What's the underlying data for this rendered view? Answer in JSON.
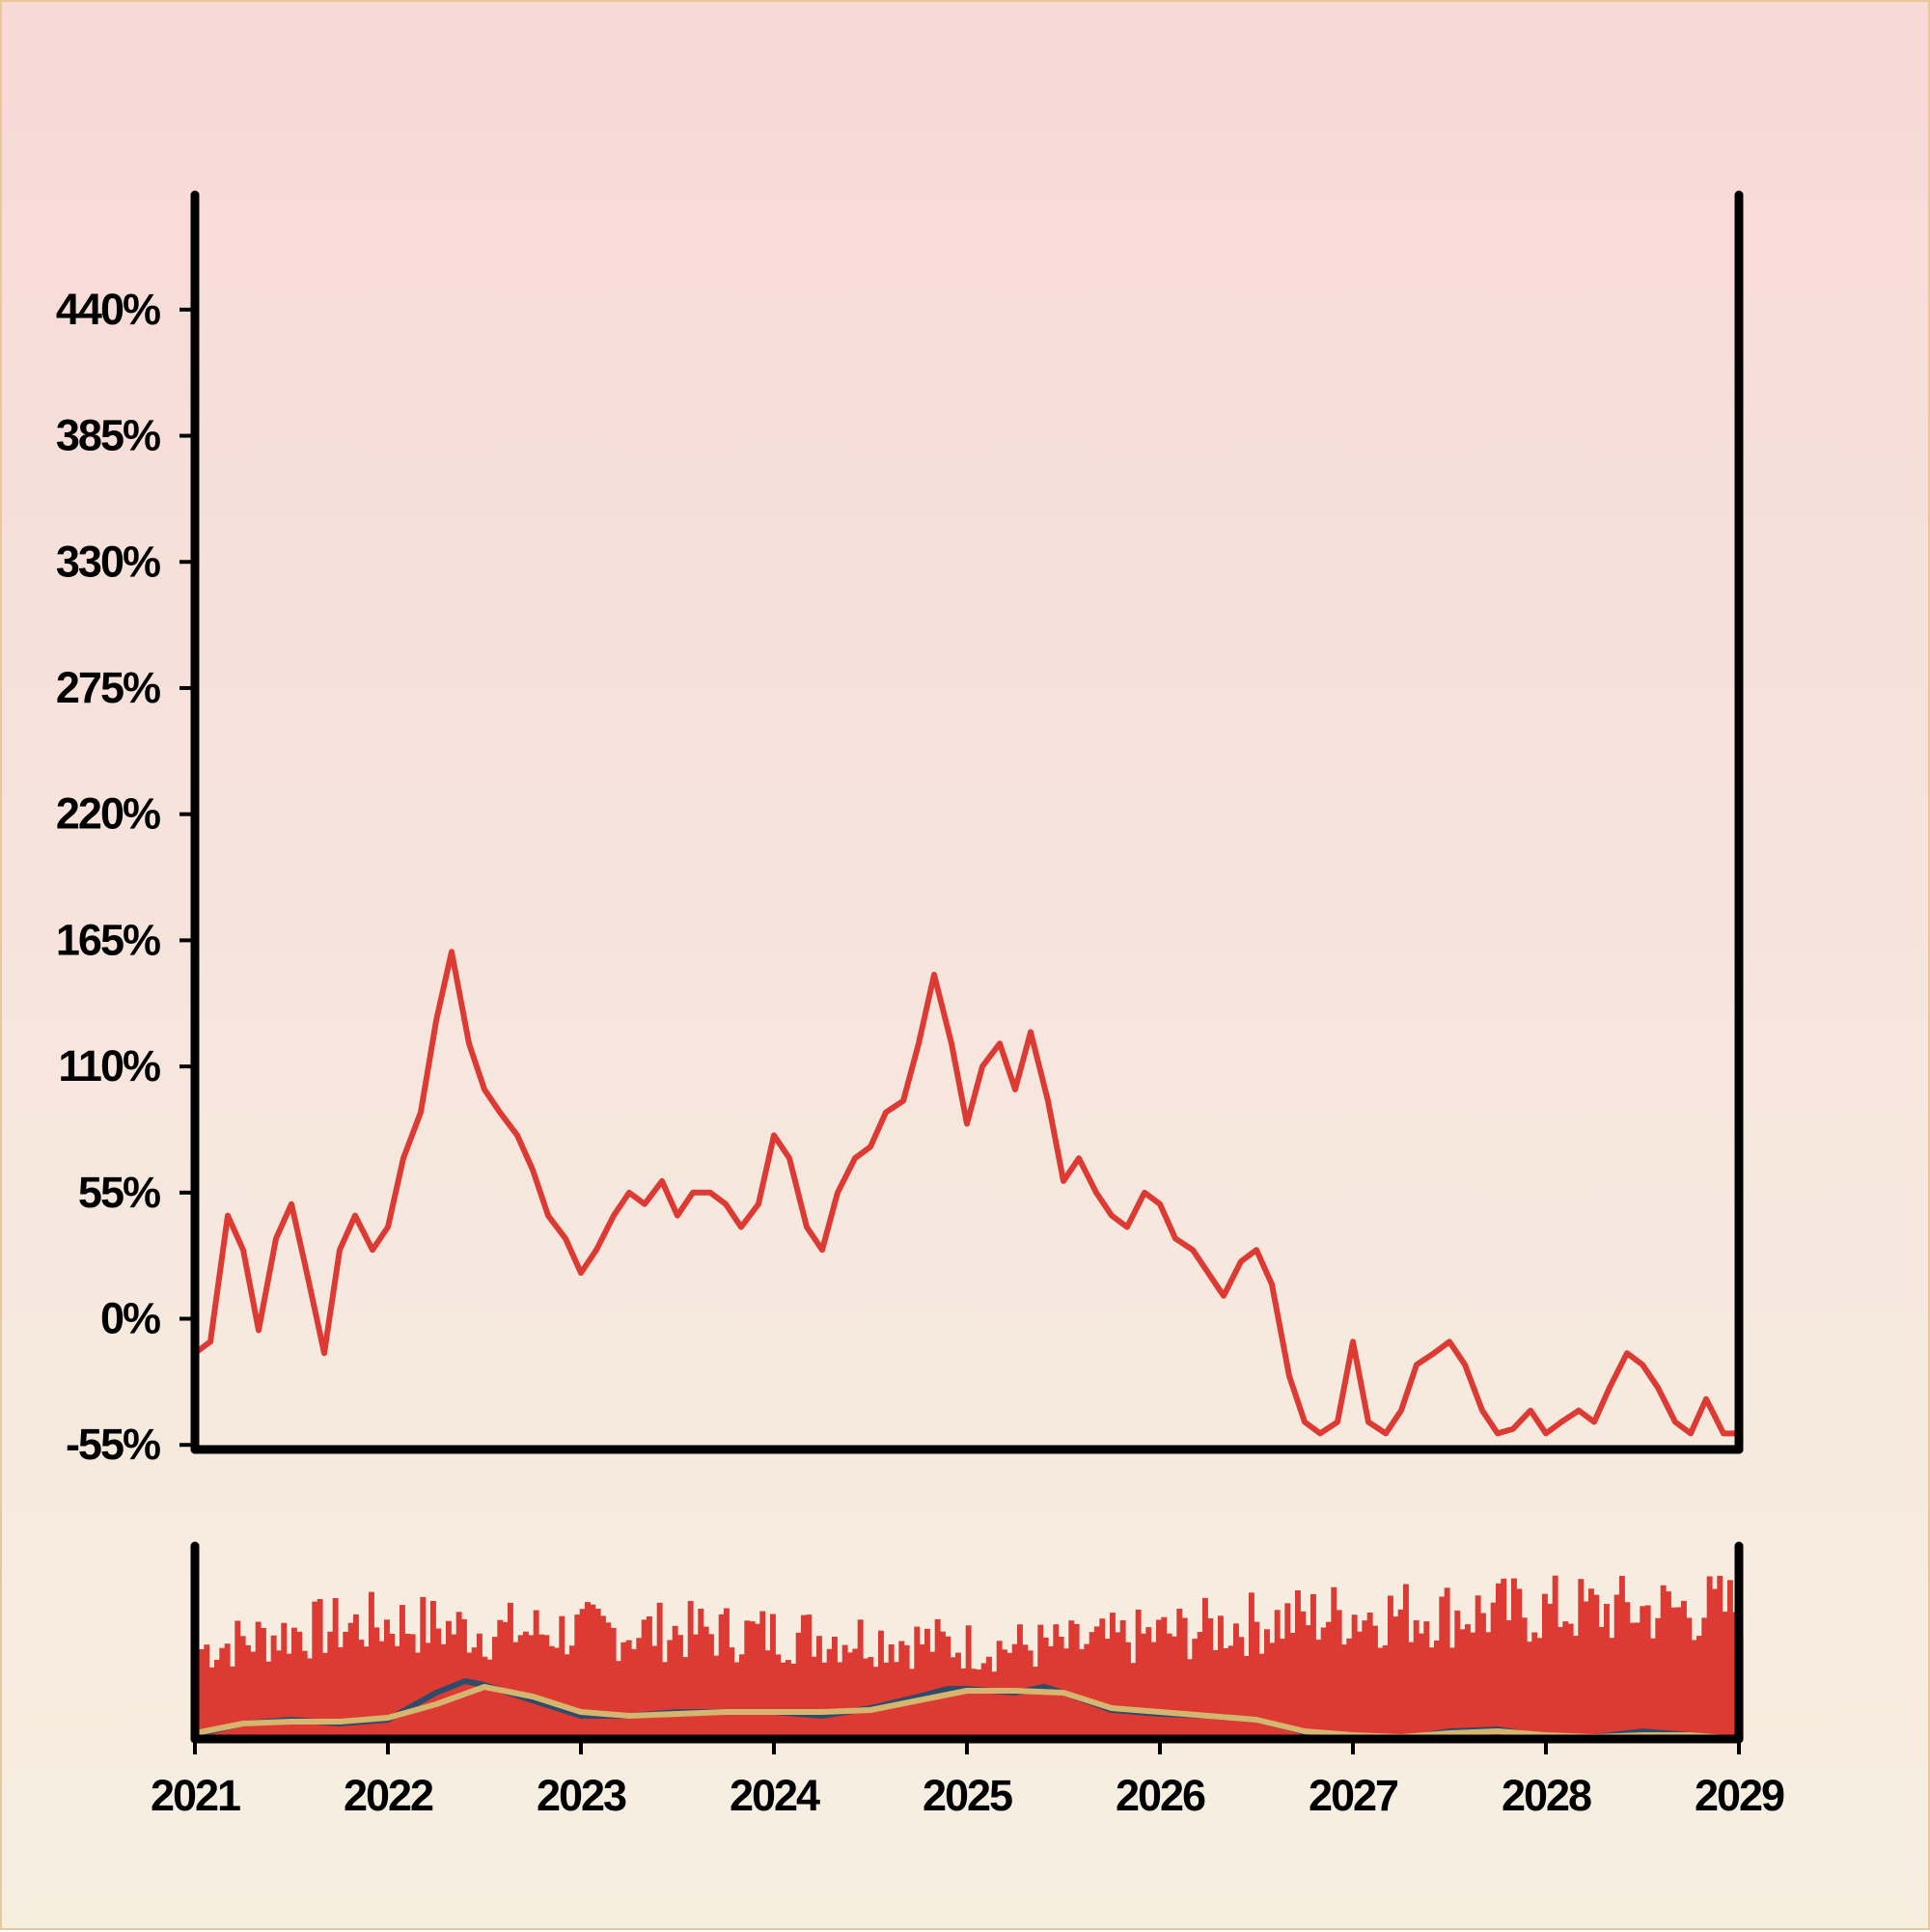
{
  "colors": {
    "price_line": "#dd3a33",
    "volume_bars": "#dd3a33",
    "ma_fast": "#2f4b6a",
    "ma_slow": "#d6b56e",
    "axis": "#000000",
    "background_top": "#f7d9d6",
    "background_bottom": "#f6efe0",
    "frame": "#e8c89a"
  },
  "chart_data": [
    {
      "type": "line",
      "title": "",
      "xlabel": "",
      "ylabel": "",
      "grid": false,
      "x_domain": [
        2021.0,
        2029.0
      ],
      "ylim": [
        -57,
        490
      ],
      "y_ticks": [
        -55,
        0,
        55,
        110,
        165,
        220,
        275,
        330,
        385,
        440
      ],
      "y_tick_labels": [
        "-55%",
        "0%",
        "55%",
        "110%",
        "165%",
        "220%",
        "275%",
        "330%",
        "385%",
        "440%"
      ],
      "series": [
        {
          "x": [
            2021.0,
            2021.08,
            2021.17,
            2021.25,
            2021.33,
            2021.42,
            2021.5,
            2021.58,
            2021.67,
            2021.75,
            2021.83,
            2021.92,
            2022.0,
            2022.08,
            2022.17,
            2022.25,
            2022.33,
            2022.42,
            2022.5,
            2022.58,
            2022.67,
            2022.75,
            2022.83,
            2022.92,
            2023.0,
            2023.08,
            2023.17,
            2023.25,
            2023.33,
            2023.42,
            2023.5,
            2023.58,
            2023.67,
            2023.75,
            2023.83,
            2023.92,
            2024.0,
            2024.08,
            2024.17,
            2024.25,
            2024.33,
            2024.42,
            2024.5,
            2024.58,
            2024.67,
            2024.75,
            2024.83,
            2024.92,
            2025.0,
            2025.08,
            2025.17,
            2025.25,
            2025.33,
            2025.42,
            2025.5,
            2025.58,
            2025.67,
            2025.75,
            2025.83,
            2025.92,
            2026.0,
            2026.08,
            2026.17,
            2026.25,
            2026.33,
            2026.42,
            2026.5,
            2026.58,
            2026.67,
            2026.75,
            2026.83,
            2026.92,
            2027.0,
            2027.08,
            2027.17,
            2027.25,
            2027.33,
            2027.42,
            2027.5,
            2027.58,
            2027.67,
            2027.75,
            2027.83,
            2027.92,
            2028.0,
            2028.08,
            2028.17,
            2028.25,
            2028.33,
            2028.42,
            2028.5,
            2028.58,
            2028.67,
            2028.75,
            2028.83,
            2028.92,
            2029.0
          ],
          "values": [
            -15,
            -10,
            45,
            30,
            -5,
            35,
            50,
            20,
            -15,
            30,
            45,
            30,
            40,
            70,
            90,
            130,
            160,
            120,
            100,
            90,
            80,
            65,
            45,
            35,
            20,
            30,
            45,
            55,
            50,
            60,
            45,
            55,
            55,
            50,
            40,
            50,
            80,
            70,
            40,
            30,
            55,
            70,
            75,
            90,
            95,
            120,
            150,
            120,
            85,
            110,
            120,
            100,
            125,
            95,
            60,
            70,
            55,
            45,
            40,
            55,
            50,
            35,
            30,
            20,
            10,
            25,
            30,
            15,
            -25,
            -45,
            -50,
            -45,
            -10,
            -45,
            -50,
            -40,
            -20,
            -15,
            -10,
            -20,
            -40,
            -50,
            -48,
            -40,
            -50,
            -45,
            -40,
            -45,
            -30,
            -15,
            -20,
            -30,
            -45,
            -50,
            -35,
            -50,
            -50
          ]
        }
      ]
    },
    {
      "type": "bar",
      "title": "",
      "xlabel": "",
      "ylabel": "",
      "grid": false,
      "x_domain": [
        2021.0,
        2029.0
      ],
      "ylim": [
        0,
        100
      ],
      "x_ticks": [
        2021,
        2022,
        2023,
        2024,
        2025,
        2026,
        2027,
        2028,
        2029
      ],
      "x_tick_labels": [
        "2021",
        "2022",
        "2023",
        "2024",
        "2025",
        "2026",
        "2027",
        "2028",
        "2029"
      ],
      "volume_envelope": {
        "x": [
          2021.0,
          2021.5,
          2022.0,
          2022.5,
          2023.0,
          2023.5,
          2024.0,
          2024.5,
          2025.0,
          2025.5,
          2026.0,
          2026.5,
          2027.0,
          2027.5,
          2028.0,
          2028.5,
          2029.0
        ],
        "values": [
          60,
          72,
          78,
          72,
          72,
          72,
          70,
          68,
          62,
          62,
          70,
          78,
          84,
          84,
          86,
          86,
          88
        ]
      },
      "series": [
        {
          "name": "",
          "type": "area",
          "x": [
            2021.0,
            2021.25,
            2021.5,
            2021.75,
            2022.0,
            2022.25,
            2022.4,
            2022.5,
            2022.75,
            2023.0,
            2023.25,
            2023.5,
            2023.75,
            2024.0,
            2024.25,
            2024.5,
            2024.75,
            2024.9,
            2025.0,
            2025.25,
            2025.4,
            2025.5,
            2025.75,
            2026.0,
            2026.25,
            2026.5,
            2026.7,
            2026.85,
            2027.0,
            2027.25,
            2027.5,
            2027.75,
            2028.0,
            2028.25,
            2028.5,
            2028.75,
            2029.0
          ],
          "values": [
            2,
            8,
            10,
            8,
            10,
            24,
            32,
            28,
            18,
            10,
            14,
            14,
            14,
            14,
            14,
            16,
            24,
            28,
            26,
            26,
            28,
            24,
            14,
            14,
            12,
            10,
            6,
            1,
            2,
            0,
            5,
            5,
            0,
            1,
            3,
            2,
            0
          ]
        },
        {
          "name": "",
          "type": "line",
          "x": [
            2021.0,
            2021.25,
            2021.5,
            2021.75,
            2022.0,
            2022.25,
            2022.4,
            2022.5,
            2022.75,
            2023.0,
            2023.25,
            2023.5,
            2023.75,
            2024.0,
            2024.25,
            2024.5,
            2024.75,
            2024.9,
            2025.0,
            2025.25,
            2025.4,
            2025.5,
            2025.75,
            2026.0,
            2026.25,
            2026.5,
            2026.7,
            2026.85,
            2027.0,
            2027.25,
            2027.5,
            2027.75,
            2028.0,
            2028.25,
            2028.5,
            2028.75,
            2029.0
          ],
          "values": [
            2,
            8,
            10,
            8,
            10,
            24,
            30,
            28,
            20,
            12,
            12,
            14,
            14,
            14,
            12,
            16,
            22,
            26,
            26,
            24,
            27,
            24,
            15,
            13,
            12,
            10,
            5,
            0,
            2,
            0,
            4,
            5,
            1,
            1,
            4,
            2,
            0
          ]
        },
        {
          "name": "",
          "type": "line",
          "x": [
            2021.0,
            2021.25,
            2021.5,
            2021.75,
            2022.0,
            2022.25,
            2022.5,
            2022.75,
            2023.0,
            2023.25,
            2023.5,
            2023.75,
            2024.0,
            2024.25,
            2024.5,
            2024.75,
            2025.0,
            2025.25,
            2025.5,
            2025.75,
            2026.0,
            2026.25,
            2026.5,
            2026.75,
            2027.0,
            2027.25,
            2027.5,
            2027.75,
            2028.0,
            2028.25,
            2028.5,
            2028.75,
            2029.0
          ],
          "values": [
            3,
            8,
            9,
            9,
            11,
            18,
            27,
            22,
            14,
            12,
            13,
            14,
            14,
            14,
            15,
            20,
            25,
            25,
            24,
            16,
            14,
            12,
            10,
            4,
            2,
            1,
            3,
            4,
            2,
            1,
            2,
            2,
            0
          ]
        }
      ]
    }
  ]
}
